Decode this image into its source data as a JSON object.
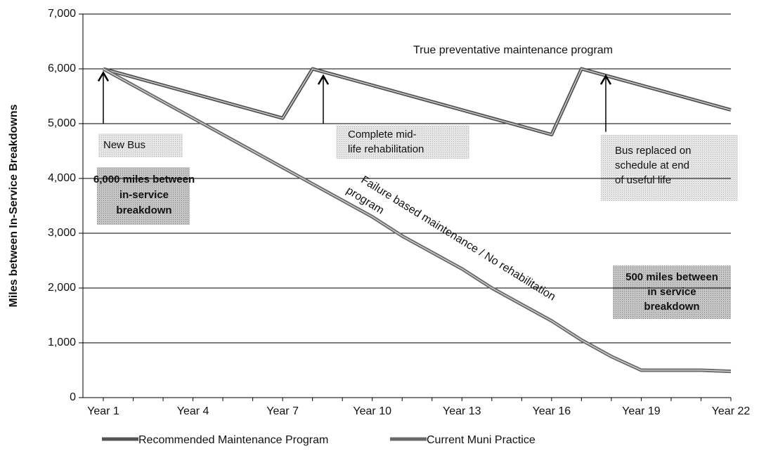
{
  "chart_data": {
    "type": "line",
    "y_label": "Miles between In-Service Breakdowns",
    "categories": [
      "Year 1",
      null,
      null,
      "Year 4",
      null,
      null,
      "Year 7",
      null,
      null,
      "Year 10",
      null,
      null,
      "Year 13",
      null,
      null,
      "Year 16",
      null,
      null,
      "Year 19",
      null,
      null,
      "Year 22"
    ],
    "series": [
      {
        "name": "Recommended Maintenance Program",
        "color": "#555555",
        "values": [
          6000,
          5850,
          5700,
          5550,
          5400,
          5250,
          5100,
          6000,
          5850,
          5700,
          5550,
          5400,
          5250,
          5100,
          4950,
          4800,
          6000,
          5850,
          5700,
          5550,
          5400,
          5250
        ]
      },
      {
        "name": "Current Muni Practice",
        "color": "#6a6a6a",
        "values": [
          6000,
          5700,
          5400,
          5100,
          4800,
          4500,
          4200,
          3900,
          3600,
          3300,
          2950,
          2650,
          2350,
          2000,
          1700,
          1400,
          1050,
          750,
          500,
          500,
          500,
          480
        ]
      }
    ],
    "ylim": [
      0,
      7000
    ],
    "yticks": [
      0,
      {
        "value": 1000,
        "label": "1,000"
      },
      {
        "value": 2000,
        "label": "2,000"
      },
      {
        "value": 3000,
        "label": "3,000"
      },
      {
        "value": 4000,
        "label": "4,000"
      },
      {
        "value": 5000,
        "label": "5,000"
      },
      {
        "value": 6000,
        "label": "6,000"
      },
      {
        "value": 7000,
        "label": "7,000"
      }
    ],
    "grid": true,
    "legend": "bottom",
    "annotations": [
      {
        "lines": [
          "True preventative maintenance program"
        ]
      },
      {
        "lines": [
          "New Bus"
        ]
      },
      {
        "lines": [
          "6,000 miles between",
          "in-service",
          "breakdown"
        ]
      },
      {
        "lines": [
          "Complete mid-",
          "life rehabilitation"
        ]
      },
      {
        "lines": [
          "Bus replaced on",
          "schedule at end",
          "of useful life"
        ]
      },
      {
        "lines": [
          "Failure based maintenance / No rehabilitation",
          "program"
        ]
      },
      {
        "lines": [
          "500 miles between",
          "in service",
          "breakdown"
        ]
      }
    ]
  }
}
